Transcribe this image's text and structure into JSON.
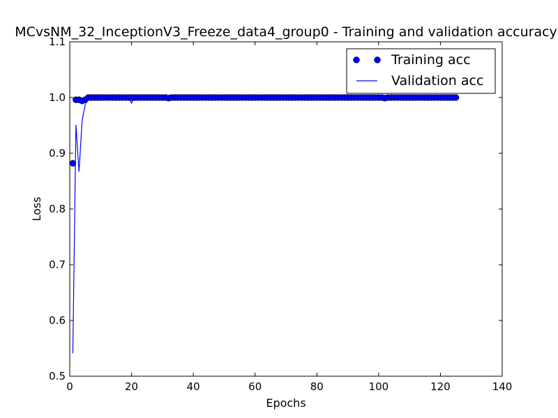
{
  "chart_data": {
    "type": "line",
    "title": "MCvsNM_32_InceptionV3_Freeze_data4_group0 - Training and validation accuracy",
    "xlabel": "Epochs",
    "ylabel": "Loss",
    "xlim": [
      0,
      140
    ],
    "ylim": [
      0.5,
      1.1
    ],
    "xticks": [
      0,
      20,
      40,
      60,
      80,
      100,
      120,
      140
    ],
    "xtick_labels": [
      "0",
      "20",
      "40",
      "60",
      "80",
      "100",
      "120",
      "140"
    ],
    "yticks": [
      0.5,
      0.6,
      0.7,
      0.8,
      0.9,
      1.0,
      1.1
    ],
    "ytick_labels": [
      "0.5",
      "0.6",
      "0.7",
      "0.8",
      "0.9",
      "1.0",
      "1.1"
    ],
    "grid": false,
    "legend_position": "top-right",
    "colors": {
      "series": "#0000ff",
      "axes": "#000000",
      "background": "#ffffff"
    },
    "series": [
      {
        "name": "Training acc",
        "style": "markers",
        "base_value": 1.0,
        "num_epochs": 125,
        "overrides": {
          "1": 0.882,
          "2": 0.996,
          "3": 0.996,
          "4": 0.994,
          "5": 0.996,
          "32": 0.999,
          "102": 0.999
        }
      },
      {
        "name": "Validation acc",
        "style": "line",
        "base_value": 1.0,
        "num_epochs": 125,
        "overrides": {
          "1": 0.541,
          "2": 0.951,
          "3": 0.867,
          "4": 0.958,
          "5": 0.987,
          "18": 0.998,
          "20": 0.99,
          "22": 0.998,
          "102": 0.997
        }
      }
    ]
  }
}
